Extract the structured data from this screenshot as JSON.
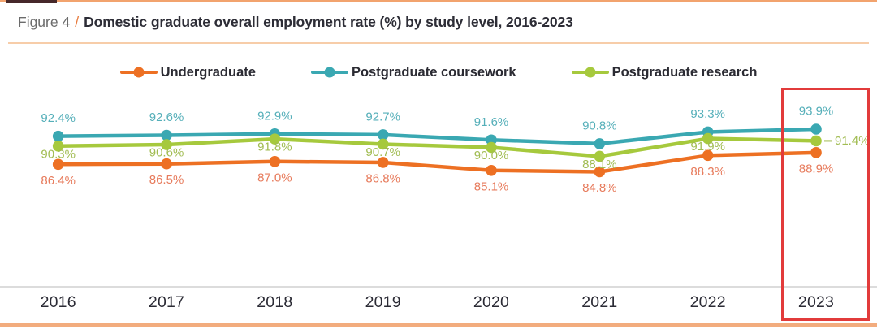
{
  "figure": {
    "label": "Figure 4",
    "separator": "/",
    "title": "Domestic graduate overall employment rate (%) by study level, 2016-2023"
  },
  "chart_data": {
    "type": "line",
    "title": "Domestic graduate overall employment rate (%) by study level, 2016-2023",
    "categories": [
      "2016",
      "2017",
      "2018",
      "2019",
      "2020",
      "2021",
      "2022",
      "2023"
    ],
    "series": [
      {
        "name": "Undergraduate",
        "key": "undergraduate",
        "color": "#ED7023",
        "label_color": "#E77B5C",
        "values": [
          86.4,
          86.5,
          87.0,
          86.8,
          85.1,
          84.8,
          88.3,
          88.9
        ],
        "labels": [
          "86.4%",
          "86.5%",
          "87.0%",
          "86.8%",
          "85.1%",
          "84.8%",
          "88.3%",
          "88.9%"
        ]
      },
      {
        "name": "Postgraduate coursework",
        "key": "coursework",
        "color": "#3AA8B2",
        "label_color": "#55AFB9",
        "values": [
          92.4,
          92.6,
          92.9,
          92.7,
          91.6,
          90.8,
          93.3,
          93.9
        ],
        "labels": [
          "92.4%",
          "92.6%",
          "92.9%",
          "92.7%",
          "91.6%",
          "90.8%",
          "93.3%",
          "93.9%"
        ]
      },
      {
        "name": "Postgraduate research",
        "key": "research",
        "color": "#A6C93D",
        "label_color": "#A1BC52",
        "values": [
          90.3,
          90.6,
          91.8,
          90.7,
          90.0,
          88.1,
          91.9,
          91.4
        ],
        "labels": [
          "90.3%",
          "90.6%",
          "91.8%",
          "90.7%",
          "90.0%",
          "88.1%",
          "91.9%",
          "91.4%"
        ]
      }
    ],
    "xlabel": "",
    "ylabel": "",
    "ylim": [
      84,
      95
    ],
    "grid": "off",
    "legend_position": "top-center",
    "annotations": {
      "highlight_year": "2023",
      "highlight_color": "#E23B3B"
    }
  }
}
